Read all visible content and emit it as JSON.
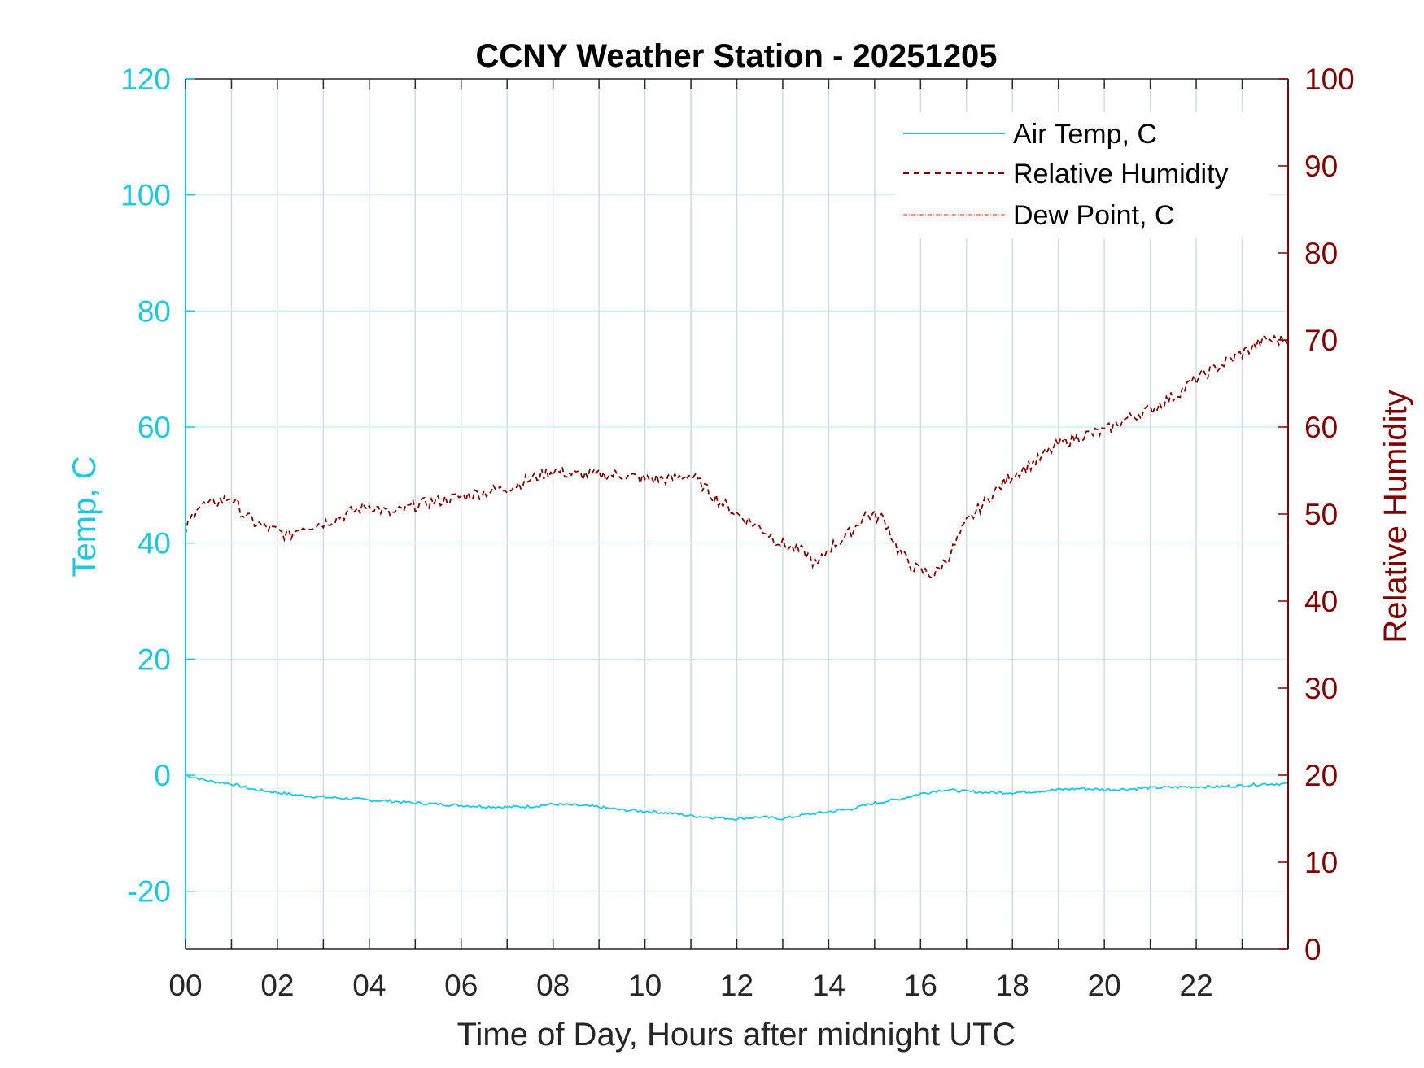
{
  "chart_data": {
    "type": "line",
    "title": "CCNY Weather Station - 20251205",
    "xlabel": "Time of Day, Hours after midnight UTC",
    "ylabel_left": "Temp, C",
    "ylabel_right": "Relative Humidity",
    "xlim": [
      0,
      24
    ],
    "ylim_left": [
      -30,
      120
    ],
    "ylim_right": [
      0,
      100
    ],
    "x_ticks": [
      "00",
      "02",
      "04",
      "06",
      "08",
      "10",
      "12",
      "14",
      "16",
      "18",
      "20",
      "22"
    ],
    "x_tick_values": [
      0,
      2,
      4,
      6,
      8,
      10,
      12,
      14,
      16,
      18,
      20,
      22
    ],
    "y_left_ticks": [
      "-20",
      "0",
      "20",
      "40",
      "60",
      "80",
      "100",
      "120"
    ],
    "y_left_tick_values": [
      -20,
      0,
      20,
      40,
      60,
      80,
      100,
      120
    ],
    "y_right_ticks": [
      "0",
      "10",
      "20",
      "30",
      "40",
      "50",
      "60",
      "70",
      "80",
      "90",
      "100"
    ],
    "y_right_tick_values": [
      0,
      10,
      20,
      30,
      40,
      50,
      60,
      70,
      80,
      90,
      100
    ],
    "grid": true,
    "legend_position": "top-right",
    "colors": {
      "air_temp": "#1cc8dc",
      "humidity": "#7f0000",
      "dew_point": "#ff6f4f",
      "grid_vertical": "#d3dae2",
      "grid_horizontal": "#cdeff4",
      "axis": "#262626"
    },
    "series": [
      {
        "name": "Air Temp, C",
        "axis": "left",
        "style": "solid",
        "x": [
          0,
          0.5,
          1,
          1.5,
          2,
          2.5,
          3,
          3.5,
          4,
          4.5,
          5,
          5.5,
          6,
          6.5,
          7,
          7.5,
          8,
          8.5,
          9,
          9.5,
          10,
          10.5,
          11,
          11.5,
          12,
          12.5,
          13,
          13.5,
          14,
          14.5,
          15,
          15.5,
          16,
          16.5,
          17,
          17.5,
          18,
          18.5,
          19,
          19.5,
          20,
          20.5,
          21,
          21.5,
          22,
          22.5,
          23,
          23.5,
          24
        ],
        "values": [
          0,
          -1,
          -1.5,
          -2.5,
          -3,
          -3.5,
          -3.8,
          -4,
          -4.3,
          -4.5,
          -4.8,
          -5,
          -5.2,
          -5.4,
          -5.5,
          -5.4,
          -5,
          -5.2,
          -5.5,
          -6,
          -6.2,
          -6.5,
          -7,
          -7.3,
          -7.5,
          -7.2,
          -7.5,
          -6.8,
          -6.3,
          -5.8,
          -4.8,
          -4.2,
          -3.2,
          -2.5,
          -2.8,
          -3,
          -3,
          -2.8,
          -2.5,
          -2.3,
          -2.5,
          -2.4,
          -2.2,
          -2.1,
          -2,
          -2,
          -1.8,
          -1.5,
          -1.5
        ]
      },
      {
        "name": "Relative Humidity",
        "axis": "right",
        "style": "dashed",
        "x": [
          0,
          0.25,
          0.5,
          1,
          1.25,
          1.5,
          2,
          2.25,
          2.5,
          3,
          3.5,
          4,
          4.5,
          5,
          5.5,
          6,
          6.5,
          7,
          7.5,
          8,
          8.5,
          9,
          9.5,
          10,
          10.5,
          11,
          11.5,
          12,
          12.5,
          13,
          13.5,
          13.75,
          14,
          14.5,
          14.8,
          15.2,
          15.5,
          15.8,
          16,
          16.3,
          16.6,
          17,
          17.5,
          18,
          18.5,
          19,
          19.5,
          20,
          20.5,
          21,
          21.5,
          22,
          22.5,
          23,
          23.5,
          24
        ],
        "values": [
          48,
          51,
          51,
          52,
          50,
          49,
          48,
          47.5,
          48.5,
          49,
          50,
          51,
          50,
          51,
          51.5,
          52,
          52.5,
          53,
          54,
          55,
          54.5,
          54.5,
          54.5,
          54,
          54,
          54.5,
          52,
          50,
          48.5,
          46.5,
          45.5,
          44,
          46,
          48,
          50,
          49.5,
          46,
          44,
          43.5,
          43,
          45,
          49,
          52,
          54.5,
          56,
          58,
          59,
          59.5,
          61,
          62,
          63.5,
          65.5,
          67,
          68.5,
          70,
          70
        ]
      },
      {
        "name": "Dew Point, C",
        "axis": "left",
        "style": "dashdot",
        "x": [],
        "values": []
      }
    ]
  }
}
